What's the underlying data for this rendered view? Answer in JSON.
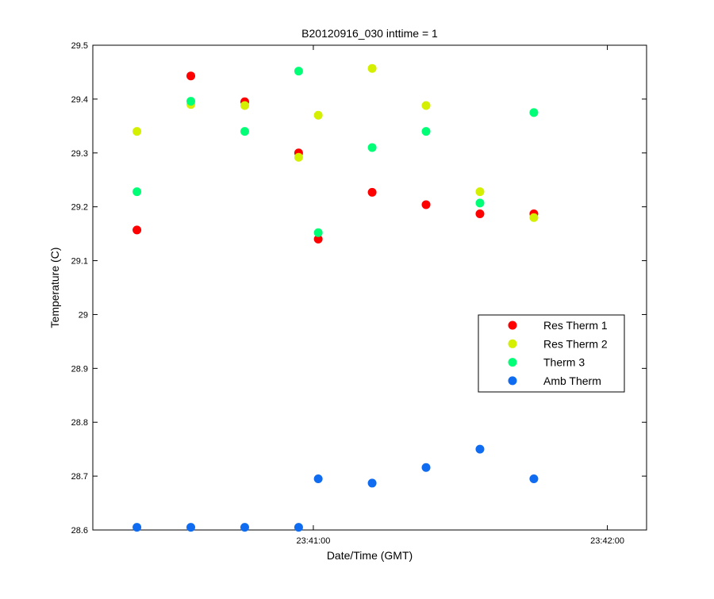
{
  "chart_data": {
    "type": "scatter",
    "title": "B20120916_030 inttime = 1",
    "xlabel": "Date/Time (GMT)",
    "ylabel": "Temperature (C)",
    "xlim": [
      "23:40:15",
      "23:42:08"
    ],
    "ylim": [
      28.6,
      29.5
    ],
    "y_ticks": [
      "28.6",
      "28.7",
      "28.8",
      "28.9",
      "29",
      "29.1",
      "29.2",
      "29.3",
      "29.4",
      "29.5"
    ],
    "x_ticks": [
      "23:41:00",
      "23:42:00"
    ],
    "grid": false,
    "legend_position": "right",
    "series": [
      {
        "name": "Res Therm 1",
        "color": "#ff0000",
        "x": [
          "23:40:24",
          "23:40:35",
          "23:40:46",
          "23:40:57",
          "23:41:01",
          "23:41:12",
          "23:41:23",
          "23:41:34",
          "23:41:45"
        ],
        "y": [
          29.157,
          29.443,
          29.395,
          29.3,
          29.14,
          29.227,
          29.204,
          29.187,
          29.187
        ]
      },
      {
        "name": "Res Therm 2",
        "color": "#d4ef00",
        "x": [
          "23:40:24",
          "23:40:35",
          "23:40:46",
          "23:40:57",
          "23:41:01",
          "23:41:12",
          "23:41:23",
          "23:41:34",
          "23:41:45"
        ],
        "y": [
          29.34,
          29.39,
          29.388,
          29.292,
          29.37,
          29.457,
          29.388,
          29.228,
          29.18
        ]
      },
      {
        "name": "Therm 3",
        "color": "#00ff77",
        "x": [
          "23:40:24",
          "23:40:35",
          "23:40:46",
          "23:40:57",
          "23:41:01",
          "23:41:12",
          "23:41:23",
          "23:41:34",
          "23:41:45"
        ],
        "y": [
          29.228,
          29.396,
          29.34,
          29.452,
          29.152,
          29.31,
          29.34,
          29.207,
          29.375
        ]
      },
      {
        "name": "Amb Therm",
        "color": "#0f6cf0",
        "x": [
          "23:40:24",
          "23:40:35",
          "23:40:46",
          "23:40:57",
          "23:41:01",
          "23:41:12",
          "23:41:23",
          "23:41:34",
          "23:41:45"
        ],
        "y": [
          28.605,
          28.605,
          28.605,
          28.605,
          28.695,
          28.687,
          28.716,
          28.75,
          28.695
        ]
      }
    ]
  }
}
